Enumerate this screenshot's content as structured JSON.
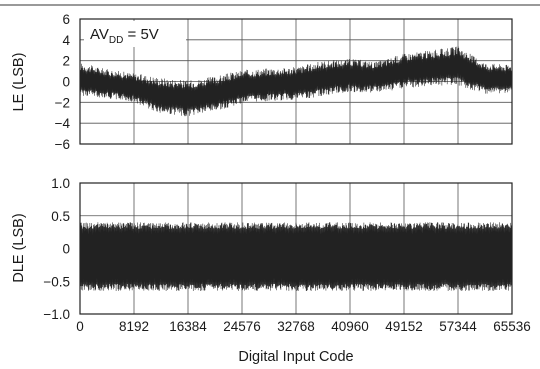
{
  "chart_data": [
    {
      "type": "line",
      "ylabel": "LE (LSB)",
      "ylim": [
        -6,
        6
      ],
      "yticks": [
        "6",
        "4",
        "2",
        "0",
        "−2",
        "−4",
        "−6"
      ],
      "annotation": {
        "prefix": "AV",
        "subscript": "DD",
        "suffix": " = 5V"
      },
      "series": [
        {
          "x": [
            0,
            4096,
            8192,
            12288,
            16384,
            20480,
            24576,
            28672,
            32768,
            36864,
            40960,
            45056,
            49152,
            53248,
            57344,
            61440,
            65535
          ],
          "center": [
            0.2,
            -0.2,
            -0.6,
            -1.5,
            -1.6,
            -1.2,
            -0.5,
            -0.3,
            -0.2,
            0.3,
            0.6,
            0.4,
            1.0,
            1.3,
            1.5,
            0.3,
            0.2
          ],
          "band_high": [
            1.8,
            1.2,
            0.8,
            0.4,
            0.1,
            0.5,
            1.1,
            1.3,
            1.4,
            2.0,
            2.2,
            1.9,
            2.7,
            3.0,
            3.4,
            1.8,
            1.6
          ],
          "band_low": [
            -1.4,
            -1.6,
            -2.0,
            -3.1,
            -3.4,
            -2.9,
            -2.1,
            -1.9,
            -1.8,
            -1.4,
            -1.0,
            -1.1,
            -0.7,
            -0.4,
            -0.4,
            -1.2,
            -1.2
          ]
        }
      ]
    },
    {
      "type": "line",
      "ylabel": "DLE (LSB)",
      "xlabel": "Digital Input Code",
      "ylim": [
        -1.0,
        1.0
      ],
      "yticks": [
        "1.0",
        "0.5",
        "0",
        "−0.5",
        "−1.0"
      ],
      "xticks": [
        "0",
        "8192",
        "16384",
        "24576",
        "32768",
        "40960",
        "49152",
        "57344",
        "65536"
      ],
      "xlim": [
        0,
        65536
      ],
      "series": [
        {
          "band_high": 0.4,
          "band_low": -0.65,
          "center": -0.1
        }
      ]
    }
  ]
}
